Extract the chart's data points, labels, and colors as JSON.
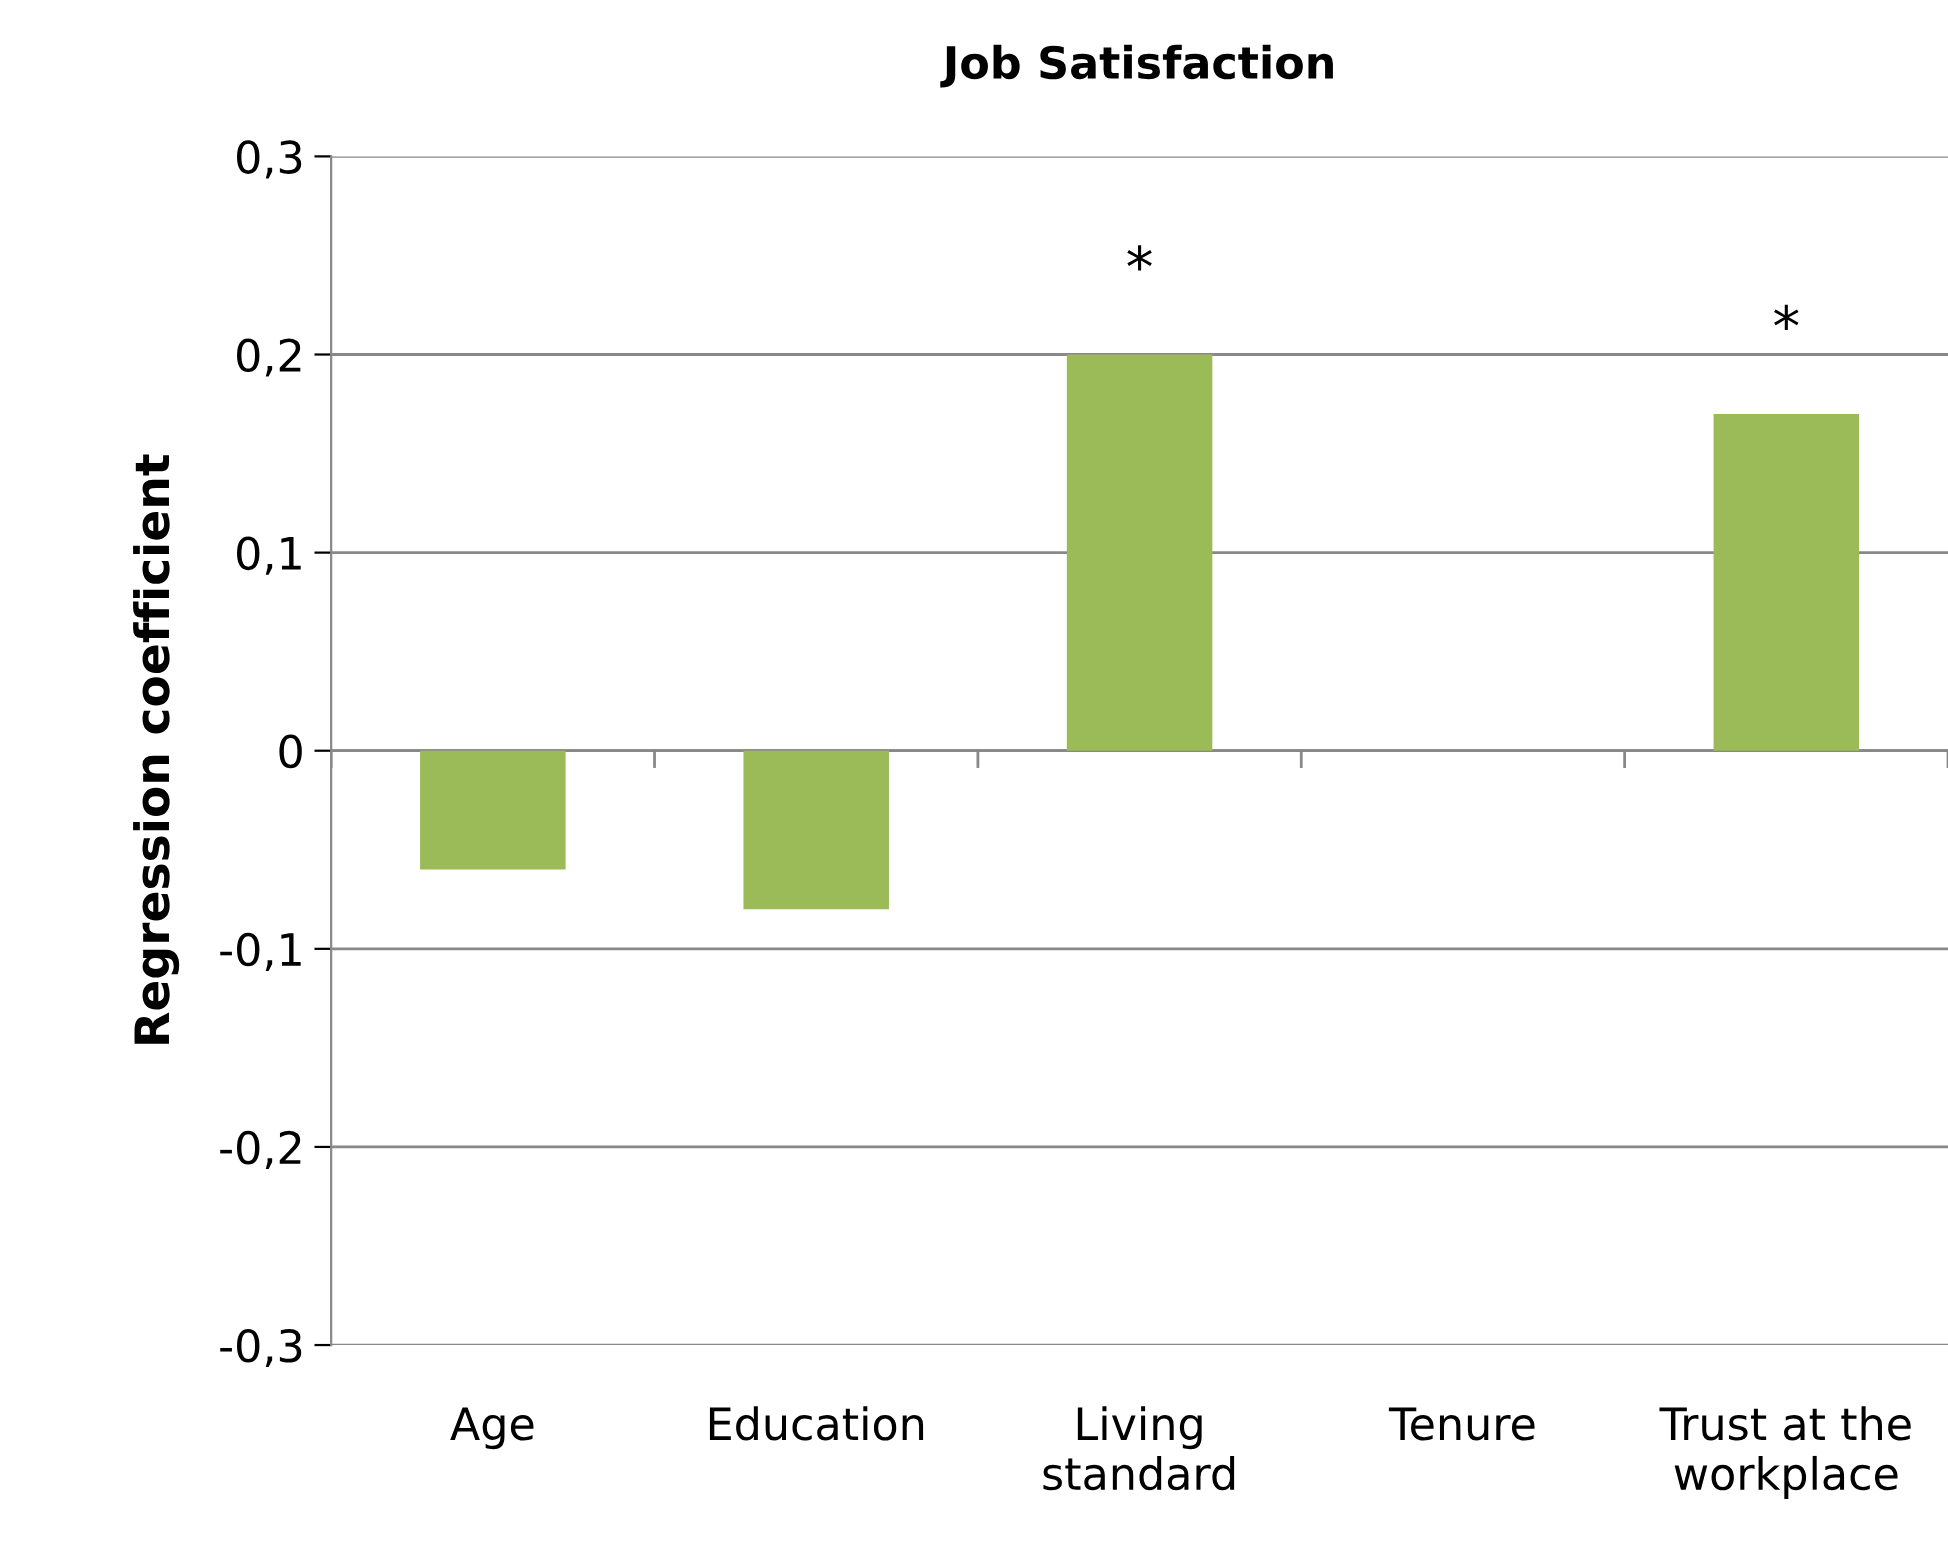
{
  "chart_data": {
    "type": "bar",
    "title": "Job Satisfaction",
    "ylabel": "Regression coefficient",
    "categories": [
      "Age",
      "Education",
      "Living\nstandard",
      "Tenure",
      "Trust at the\nworkplace"
    ],
    "values": [
      -0.06,
      -0.08,
      0.2,
      0,
      0.17
    ],
    "color": "#9bbb59",
    "ylim": [
      -0.3,
      0.3
    ],
    "yticks": [
      {
        "value": -0.3,
        "label": "-0,3"
      },
      {
        "value": -0.2,
        "label": "-0,2"
      },
      {
        "value": -0.1,
        "label": "-0,1"
      },
      {
        "value": 0,
        "label": "0"
      },
      {
        "value": 0.1,
        "label": "0,1"
      },
      {
        "value": 0.2,
        "label": "0,2"
      },
      {
        "value": 0.3,
        "label": "0,3"
      }
    ],
    "grid": "y",
    "annotations": [
      {
        "text": "*",
        "x": "Living\nstandard",
        "y": 0.2
      },
      {
        "text": "*",
        "x": "Trust at the\nworkplace",
        "y": 0.17
      }
    ]
  }
}
